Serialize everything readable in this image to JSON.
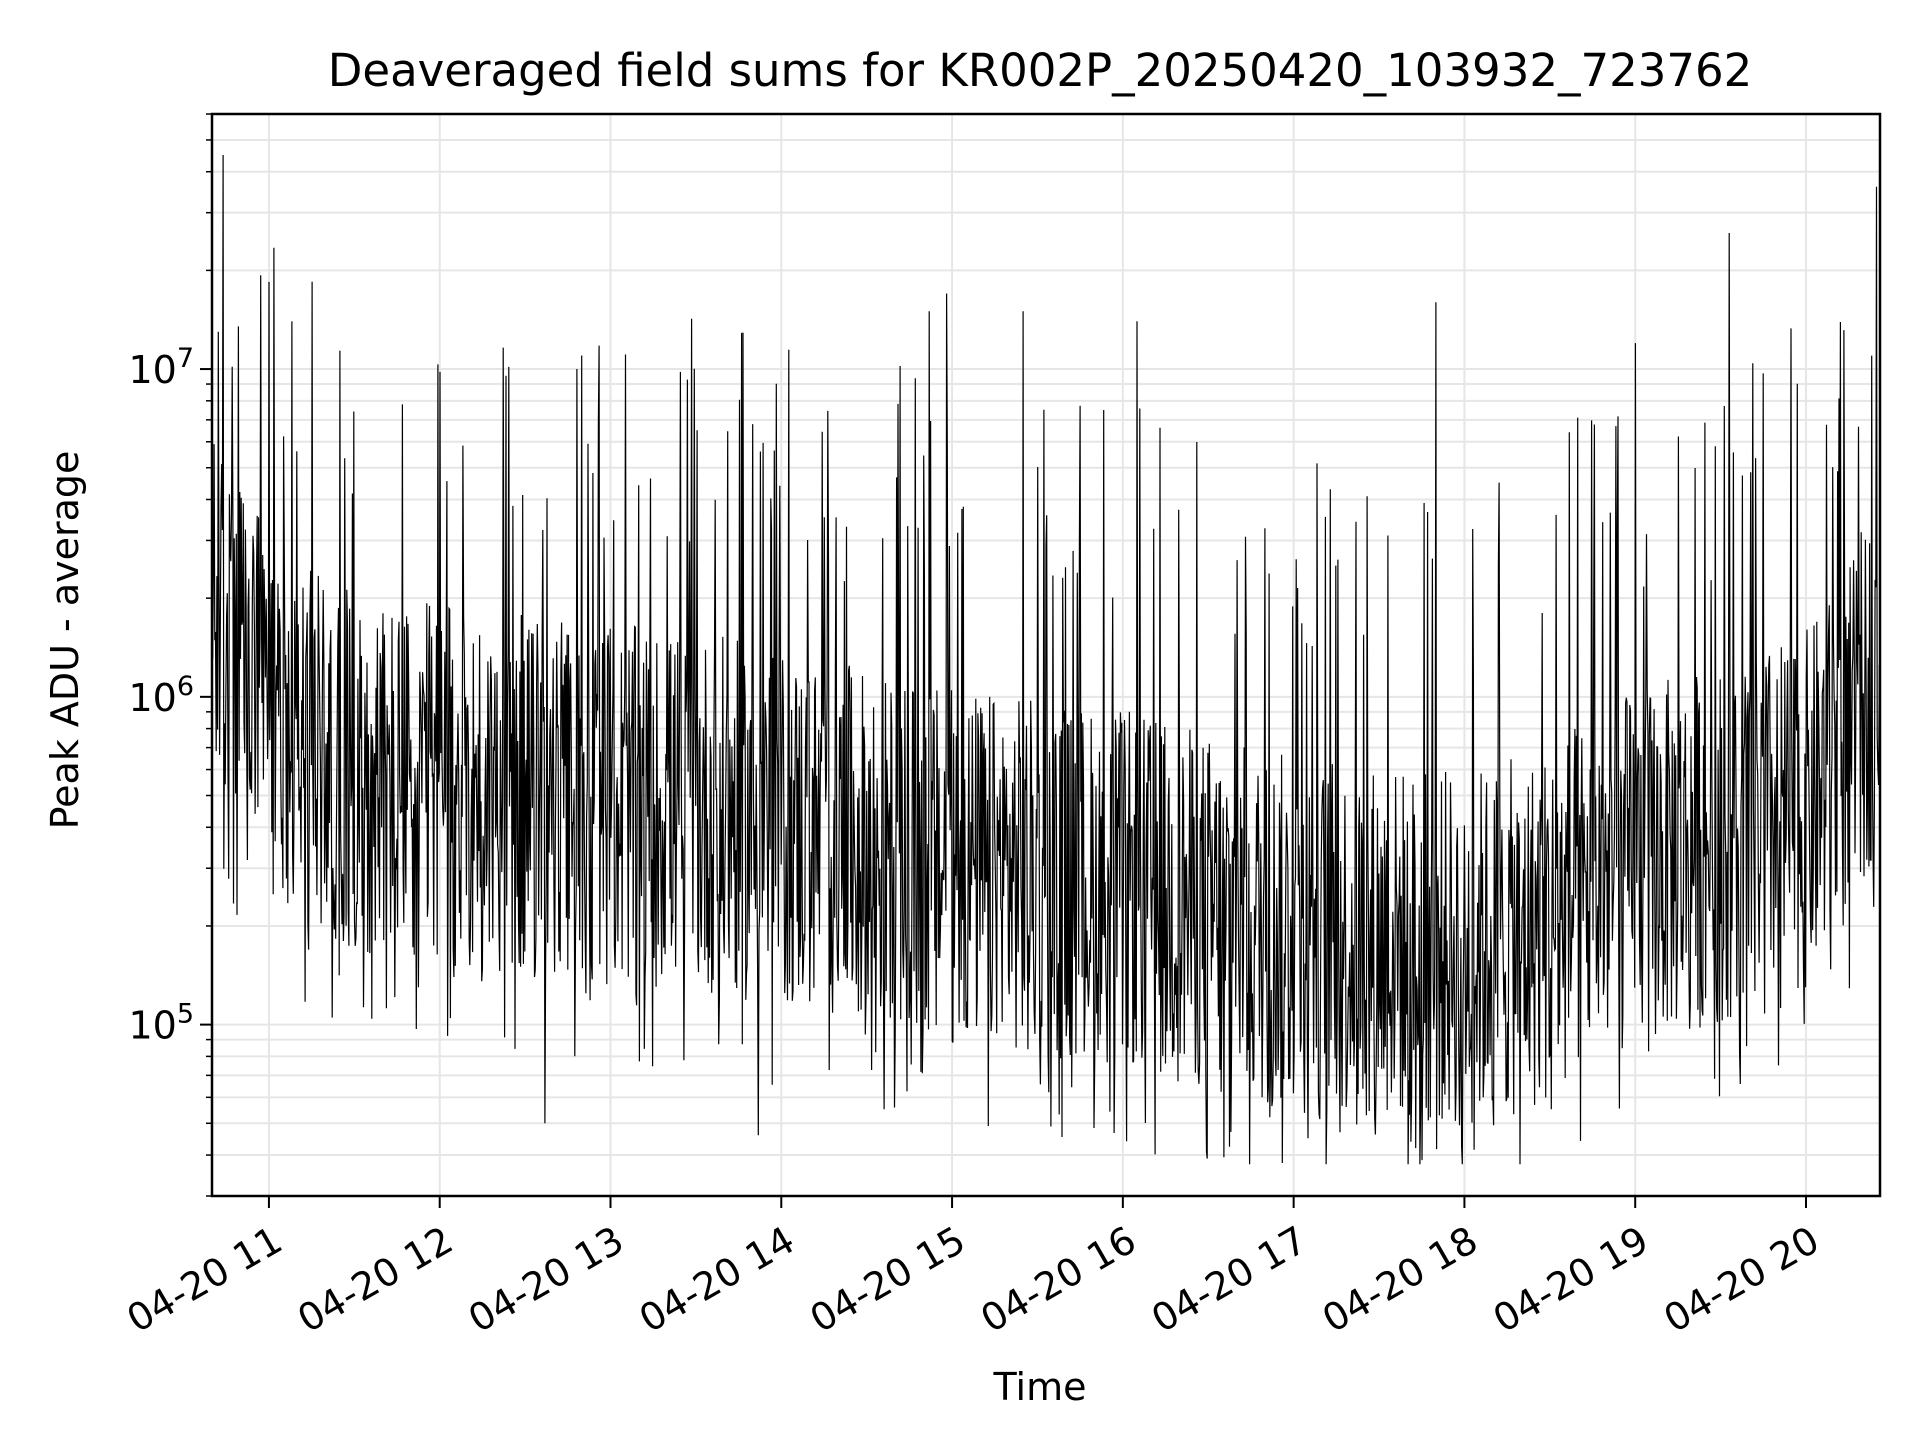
{
  "chart_data": {
    "type": "line",
    "title": "Deaveraged field sums for KR002P_20250420_103932_723762",
    "xlabel": "Time",
    "ylabel": "Peak ADU - average",
    "x_range": [
      "04-20 10:40",
      "04-20 20:26"
    ],
    "y_scale": "log",
    "ylim": [
      30000,
      60000000
    ],
    "grid": true,
    "x_ticks": [
      {
        "value": "04-20 11:00",
        "label": "04-20 11"
      },
      {
        "value": "04-20 12:00",
        "label": "04-20 12"
      },
      {
        "value": "04-20 13:00",
        "label": "04-20 13"
      },
      {
        "value": "04-20 14:00",
        "label": "04-20 14"
      },
      {
        "value": "04-20 15:00",
        "label": "04-20 15"
      },
      {
        "value": "04-20 16:00",
        "label": "04-20 16"
      },
      {
        "value": "04-20 17:00",
        "label": "04-20 17"
      },
      {
        "value": "04-20 18:00",
        "label": "04-20 18"
      },
      {
        "value": "04-20 19:00",
        "label": "04-20 19"
      },
      {
        "value": "04-20 20:00",
        "label": "04-20 20"
      }
    ],
    "y_ticks": [
      {
        "value": 100000,
        "base": "10",
        "exp": "5"
      },
      {
        "value": 1000000,
        "base": "10",
        "exp": "6"
      },
      {
        "value": 10000000,
        "base": "10",
        "exp": "7"
      }
    ],
    "series_color": "#000000",
    "series": [
      {
        "x": [
          "04-20 10:40",
          "04-20 10:45",
          "04-20 10:50",
          "04-20 11:00",
          "04-20 11:15",
          "04-20 11:30",
          "04-20 11:45",
          "04-20 12:00",
          "04-20 12:15",
          "04-20 12:30",
          "04-20 12:45",
          "04-20 13:00",
          "04-20 13:15",
          "04-20 13:30",
          "04-20 13:45",
          "04-20 14:00",
          "04-20 14:15",
          "04-20 14:30",
          "04-20 14:45",
          "04-20 15:00",
          "04-20 15:15",
          "04-20 15:30",
          "04-20 15:45",
          "04-20 16:00",
          "04-20 16:15",
          "04-20 16:30",
          "04-20 16:45",
          "04-20 17:00",
          "04-20 17:15",
          "04-20 17:30",
          "04-20 17:45",
          "04-20 18:00",
          "04-20 18:15",
          "04-20 18:30",
          "04-20 18:45",
          "04-20 19:00",
          "04-20 19:15",
          "04-20 19:30",
          "04-20 19:45",
          "04-20 20:00",
          "04-20 20:15",
          "04-20 20:26"
        ],
        "y": [
          1800000,
          1500000,
          1300000,
          900000,
          700000,
          600000,
          550000,
          550000,
          520000,
          500000,
          480000,
          470000,
          460000,
          450000,
          420000,
          400000,
          370000,
          340000,
          320000,
          300000,
          290000,
          280000,
          270000,
          260000,
          240000,
          220000,
          200000,
          190000,
          180000,
          180000,
          170000,
          170000,
          180000,
          200000,
          260000,
          300000,
          330000,
          360000,
          400000,
          450000,
          700000,
          1300000
        ],
        "spikes": [
          {
            "x": "04-20 10:44",
            "y": 45000000
          },
          {
            "x": "04-20 14:52",
            "y": 15000000
          },
          {
            "x": "04-20 14:58",
            "y": 17000000
          },
          {
            "x": "04-20 15:25",
            "y": 15000000
          },
          {
            "x": "04-20 16:05",
            "y": 14000000
          },
          {
            "x": "04-20 17:50",
            "y": 16000000
          },
          {
            "x": "04-20 19:33",
            "y": 26000000
          },
          {
            "x": "04-20 19:00",
            "y": 12000000
          },
          {
            "x": "04-20 12:00",
            "y": 9800000
          },
          {
            "x": "04-20 12:50",
            "y": 11000000
          }
        ],
        "dips": [
          {
            "x": "04-20 13:52",
            "y": 46000.0
          },
          {
            "x": "04-20 17:43",
            "y": 42000
          },
          {
            "x": "04-20 17:05",
            "y": 45000
          },
          {
            "x": "04-20 12:37",
            "y": 50000
          }
        ]
      }
    ]
  }
}
